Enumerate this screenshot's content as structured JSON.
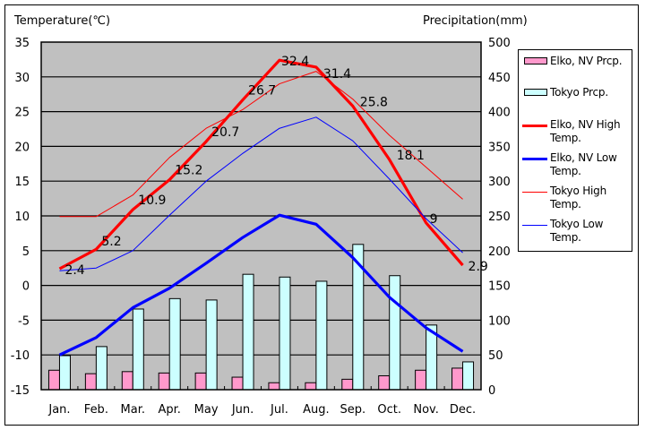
{
  "chart_data": {
    "type": "bar+line",
    "left_axis_label": "Temperature(℃)",
    "right_axis_label": "Precipitation(mm)",
    "categories": [
      "Jan.",
      "Feb.",
      "Mar.",
      "Apr.",
      "May",
      "Jun.",
      "Jul.",
      "Aug.",
      "Sep.",
      "Oct.",
      "Nov.",
      "Dec."
    ],
    "left_ylim": [
      -15,
      35
    ],
    "left_ticks": [
      "35",
      "30",
      "25",
      "20",
      "15",
      "10",
      "5",
      "0",
      "-5",
      "-10",
      "-15"
    ],
    "right_ylim": [
      0,
      500
    ],
    "right_ticks": [
      "500",
      "450",
      "400",
      "350",
      "300",
      "250",
      "200",
      "150",
      "100",
      "50",
      "0"
    ],
    "grid": true,
    "legend_position": "right",
    "bar_series": [
      {
        "name": "Elko, NV Prcp.",
        "color": "#ff99cc",
        "values": [
          28,
          23,
          26,
          24,
          24,
          18,
          10,
          10,
          15,
          20,
          28,
          31
        ]
      },
      {
        "name": "Tokyo Prcp.",
        "color": "#ccffff",
        "values": [
          49,
          62,
          116,
          131,
          129,
          166,
          162,
          156,
          209,
          164,
          93,
          40
        ]
      }
    ],
    "line_series": [
      {
        "name": "Elko, NV High Temp.",
        "color": "#ff0000",
        "width": "thick",
        "values": [
          2.4,
          5.2,
          10.9,
          15.2,
          20.7,
          26.7,
          32.4,
          31.4,
          25.8,
          18.1,
          9,
          2.9
        ],
        "labels": [
          "2.4",
          "5.2",
          "10.9",
          "15.2",
          "20.7",
          "26.7",
          "32.4",
          "31.4",
          "25.8",
          "18.1",
          "9",
          "2.9"
        ]
      },
      {
        "name": "Elko, NV Low Temp.",
        "color": "#0000ff",
        "width": "thick",
        "values": [
          -10,
          -7.5,
          -3.2,
          -0.4,
          3.2,
          6.9,
          10.1,
          8.8,
          4,
          -1.7,
          -6.1,
          -9.5
        ]
      },
      {
        "name": "Tokyo High Temp.",
        "color": "#ff0000",
        "width": "thin",
        "values": [
          9.9,
          9.9,
          13,
          18.4,
          22.6,
          25.3,
          29,
          30.8,
          26.8,
          21.6,
          17,
          12.4
        ]
      },
      {
        "name": "Tokyo Low Temp.",
        "color": "#0000ff",
        "width": "thin",
        "values": [
          2.1,
          2.5,
          5,
          10.1,
          15,
          19,
          22.6,
          24.2,
          20.8,
          15.3,
          9.6,
          4.7
        ]
      }
    ]
  },
  "legend": [
    {
      "label": "Elko, NV Prcp.",
      "kind": "bar",
      "color": "#ff99cc"
    },
    {
      "label": "Tokyo Prcp.",
      "kind": "bar",
      "color": "#ccffff"
    },
    {
      "label": "Elko, NV High Temp.",
      "kind": "line-thick",
      "color": "#ff0000"
    },
    {
      "label": "Elko, NV Low Temp.",
      "kind": "line-thick",
      "color": "#0000ff"
    },
    {
      "label": "Tokyo High Temp.",
      "kind": "line-thin",
      "color": "#ff0000"
    },
    {
      "label": "Tokyo Low Temp.",
      "kind": "line-thin",
      "color": "#0000ff"
    }
  ],
  "colors": {
    "plot_bg": "#c0c0c0",
    "grid": "#000000"
  }
}
